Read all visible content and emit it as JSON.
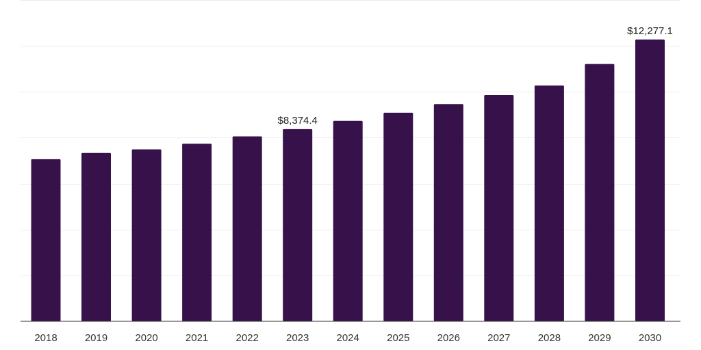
{
  "chart_data": {
    "type": "bar",
    "title": "",
    "xlabel": "",
    "ylabel": "",
    "categories": [
      "2018",
      "2019",
      "2020",
      "2021",
      "2022",
      "2023",
      "2024",
      "2025",
      "2026",
      "2027",
      "2028",
      "2029",
      "2030"
    ],
    "values": [
      7063.9,
      7337.5,
      7491.2,
      7736.6,
      8058.6,
      8374.4,
      8734.4,
      9087.2,
      9465.6,
      9859.0,
      10273.8,
      11213.0,
      12277.1
    ],
    "data_labels": [
      {
        "index": 5,
        "text": "$8,374.4"
      },
      {
        "index": 12,
        "text": "$12,277.1"
      }
    ],
    "ylim": [
      0,
      14000
    ],
    "grid": true,
    "legend": "none",
    "bar_color": "#37124a"
  }
}
